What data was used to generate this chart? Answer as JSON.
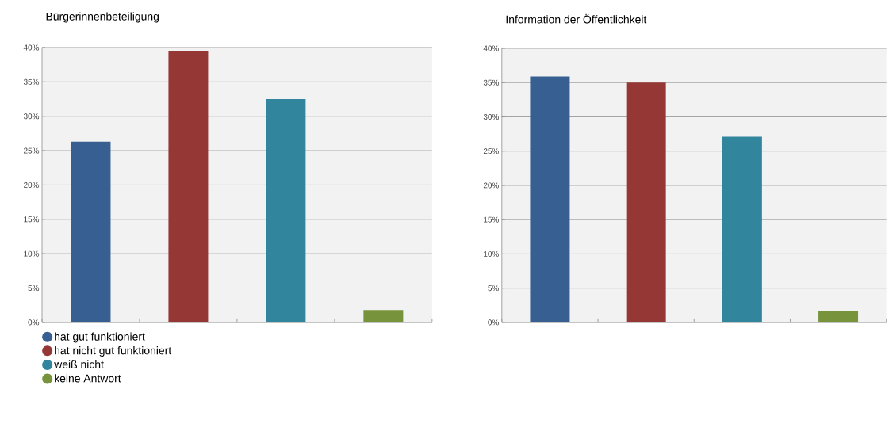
{
  "chart_data": [
    {
      "type": "bar",
      "title": "Bürgerinnenbeteiligung",
      "categories": [
        null,
        null,
        null,
        null
      ],
      "series": [
        {
          "name": "hat gut funktioniert",
          "color": "#375f91",
          "values": [
            26.3,
            null,
            null,
            null
          ]
        },
        {
          "name": "hat nicht gut funktioniert",
          "color": "#953735",
          "values": [
            null,
            39.5,
            null,
            null
          ]
        },
        {
          "name": "weiß nicht",
          "color": "#31859c",
          "values": [
            null,
            null,
            32.5,
            null
          ]
        },
        {
          "name": "keine Antwort",
          "color": "#77933c",
          "values": [
            null,
            null,
            null,
            1.8
          ]
        }
      ],
      "ylim": [
        0,
        40
      ],
      "yticks": [
        {
          "value": 0,
          "label": "0%"
        },
        {
          "value": 5,
          "label": "5%"
        },
        {
          "value": 10,
          "label": "10%"
        },
        {
          "value": 15,
          "label": "15%"
        },
        {
          "value": 20,
          "label": "20%"
        },
        {
          "value": 25,
          "label": "25%"
        },
        {
          "value": 30,
          "label": "30%"
        },
        {
          "value": 35,
          "label": "35%"
        },
        {
          "value": 40,
          "label": "40%"
        }
      ],
      "grid": "y",
      "legend": "bottom",
      "tick_labels": "y"
    },
    {
      "type": "bar",
      "title": "Information der Öffentlichkeit",
      "categories": [
        null,
        null,
        null,
        null
      ],
      "series": [
        {
          "color": "#375f91",
          "values": [
            35.9,
            null,
            null,
            null
          ]
        },
        {
          "color": "#953735",
          "values": [
            null,
            35.0,
            null,
            null
          ]
        },
        {
          "color": "#31859c",
          "values": [
            null,
            null,
            27.1,
            null
          ]
        },
        {
          "color": "#77933c",
          "values": [
            null,
            null,
            null,
            1.7
          ]
        }
      ],
      "ylim": [
        0,
        40
      ],
      "yticks": [
        {
          "value": 0,
          "label": "0%"
        },
        {
          "value": 5,
          "label": "5%"
        },
        {
          "value": 10,
          "label": "10%"
        },
        {
          "value": 15,
          "label": "15%"
        },
        {
          "value": 20,
          "label": "20%"
        },
        {
          "value": 25,
          "label": "25%"
        },
        {
          "value": 30,
          "label": "30%"
        },
        {
          "value": 35,
          "label": "35%"
        },
        {
          "value": 40,
          "label": "40%"
        }
      ],
      "grid": "y",
      "tick_labels": "y"
    }
  ]
}
